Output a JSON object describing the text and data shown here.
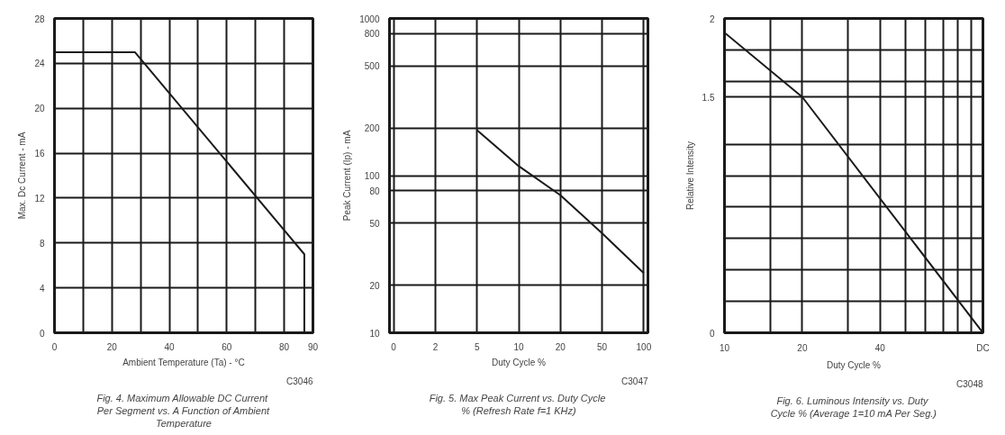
{
  "chart_data": [
    {
      "type": "line",
      "title": "Fig. 4.  Maximum Allowable DC Current Per Segment vs. A Function of Ambient Temperature",
      "xlabel": "Ambient Temperature (Ta) - °C",
      "ylabel": "Max. Dc Current - mA",
      "annotations": [
        "C3046"
      ],
      "x": [
        0,
        28,
        87,
        87
      ],
      "series": [
        {
          "color": "#1a1a1a",
          "values": [
            25,
            25,
            7,
            0
          ]
        }
      ],
      "xlim": [
        0,
        90
      ],
      "ylim": [
        0,
        28
      ],
      "xticks": [
        0,
        {
          "value": 10,
          "label": null
        },
        20,
        {
          "value": 30,
          "label": null
        },
        40,
        {
          "value": 50,
          "label": null
        },
        60,
        {
          "value": 70,
          "label": null
        },
        80,
        90
      ],
      "yticks": [
        0,
        4,
        8,
        12,
        16,
        20,
        24,
        28
      ],
      "grid": true
    },
    {
      "type": "line",
      "title": "Fig. 5.  Max Peak Current vs. Duty Cycle % (Refresh Rate f=1 KHz)",
      "xlabel": "Duty Cycle %",
      "ylabel": "Peak Current (Ip) - mA",
      "annotations": [
        "C3047"
      ],
      "categories": [
        "0",
        "2",
        "5",
        "10",
        "20",
        "50",
        "100"
      ],
      "series": [
        {
          "color": "#1a1a1a",
          "values": [
            null,
            null,
            195,
            115,
            75,
            43,
            24
          ]
        }
      ],
      "ylim": [
        10,
        1000
      ],
      "yticks": [
        10,
        20,
        50,
        80,
        100,
        200,
        500,
        800,
        1000
      ],
      "log": "y",
      "grid": true
    },
    {
      "type": "line",
      "title": "Fig. 6.  Luminous Intensity vs. Duty Cycle % (Average 1=10 mA Per Seg.)",
      "xlabel": "Duty Cycle %",
      "ylabel": "Relative Intensity",
      "annotations": [
        "C3048"
      ],
      "x": [
        10,
        20,
        100
      ],
      "series": [
        {
          "color": "#1a1a1a",
          "values": [
            1.91,
            1.5,
            0
          ]
        }
      ],
      "xlim": [
        10,
        100
      ],
      "ylim": [
        0,
        2
      ],
      "xticks": [
        10,
        {
          "value": 15,
          "label": null
        },
        20,
        {
          "value": 30,
          "label": null
        },
        40,
        {
          "value": 50,
          "label": null
        },
        {
          "value": 60,
          "label": null
        },
        {
          "value": 70,
          "label": null
        },
        {
          "value": 80,
          "label": null
        },
        {
          "value": 90,
          "label": null
        },
        {
          "value": 100,
          "label": "DC"
        }
      ],
      "yticks": [
        0,
        {
          "value": 0.2,
          "label": null
        },
        {
          "value": 0.4,
          "label": null
        },
        {
          "value": 0.6,
          "label": null
        },
        {
          "value": 0.8,
          "label": null
        },
        {
          "value": 1,
          "label": null
        },
        {
          "value": 1.2,
          "label": null
        },
        1.5,
        {
          "value": 1.6,
          "label": null
        },
        {
          "value": 1.8,
          "label": null
        },
        2
      ],
      "log": "x",
      "grid": true
    }
  ]
}
